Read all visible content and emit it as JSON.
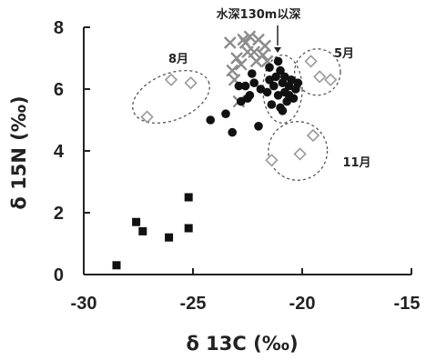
{
  "chart_data": {
    "type": "scatter",
    "title": "",
    "xlabel": "δ 13C (‰)",
    "ylabel": "δ 15N (‰)",
    "xlim": [
      -30,
      -15
    ],
    "ylim": [
      0,
      8
    ],
    "x_ticks": [
      "-30",
      "-25",
      "-20",
      "-15"
    ],
    "y_ticks": [
      "0",
      "2",
      "4",
      "6",
      "8"
    ],
    "grid": false,
    "series": [
      {
        "marker": "square-filled",
        "color": "#111111",
        "points": [
          {
            "x": -28.5,
            "y": 0.3
          },
          {
            "x": -27.6,
            "y": 1.7
          },
          {
            "x": -27.3,
            "y": 1.4
          },
          {
            "x": -26.1,
            "y": 1.2
          },
          {
            "x": -25.2,
            "y": 2.5
          },
          {
            "x": -25.2,
            "y": 1.5
          }
        ]
      },
      {
        "marker": "circle-filled",
        "color": "#111111",
        "points": [
          {
            "x": -24.2,
            "y": 5.0
          },
          {
            "x": -23.5,
            "y": 5.2
          },
          {
            "x": -23.2,
            "y": 4.6
          },
          {
            "x": -22.8,
            "y": 5.6
          },
          {
            "x": -22.5,
            "y": 5.7
          },
          {
            "x": -22.2,
            "y": 6.2
          },
          {
            "x": -22.0,
            "y": 4.8
          },
          {
            "x": -22.9,
            "y": 6.1
          },
          {
            "x": -22.6,
            "y": 6.1
          },
          {
            "x": -22.4,
            "y": 5.8
          },
          {
            "x": -22.3,
            "y": 6.5
          },
          {
            "x": -21.9,
            "y": 6.0
          },
          {
            "x": -21.6,
            "y": 5.9
          },
          {
            "x": -21.5,
            "y": 6.3
          },
          {
            "x": -21.4,
            "y": 5.5
          },
          {
            "x": -21.3,
            "y": 6.1
          },
          {
            "x": -21.2,
            "y": 6.4
          },
          {
            "x": -21.1,
            "y": 5.8
          },
          {
            "x": -21.0,
            "y": 6.6
          },
          {
            "x": -21.0,
            "y": 5.4
          },
          {
            "x": -20.9,
            "y": 6.2
          },
          {
            "x": -20.8,
            "y": 5.9
          },
          {
            "x": -20.8,
            "y": 6.4
          },
          {
            "x": -20.7,
            "y": 5.6
          },
          {
            "x": -20.6,
            "y": 6.1
          },
          {
            "x": -20.6,
            "y": 5.8
          },
          {
            "x": -20.5,
            "y": 6.3
          },
          {
            "x": -20.4,
            "y": 5.7
          },
          {
            "x": -20.3,
            "y": 6.0
          },
          {
            "x": -20.2,
            "y": 6.2
          },
          {
            "x": -21.1,
            "y": 6.9
          },
          {
            "x": -20.9,
            "y": 5.3
          },
          {
            "x": -21.5,
            "y": 6.7
          }
        ]
      },
      {
        "marker": "x-gray",
        "color": "#8c8c8c",
        "points": [
          {
            "x": -23.0,
            "y": 7.0
          },
          {
            "x": -23.2,
            "y": 6.6
          },
          {
            "x": -22.8,
            "y": 6.8
          },
          {
            "x": -22.6,
            "y": 7.5
          },
          {
            "x": -22.4,
            "y": 7.7
          },
          {
            "x": -22.2,
            "y": 7.2
          },
          {
            "x": -22.0,
            "y": 7.6
          },
          {
            "x": -21.8,
            "y": 7.1
          },
          {
            "x": -21.7,
            "y": 7.4
          },
          {
            "x": -22.5,
            "y": 7.2
          },
          {
            "x": -23.3,
            "y": 7.5
          },
          {
            "x": -21.6,
            "y": 6.9
          },
          {
            "x": -22.1,
            "y": 6.9
          },
          {
            "x": -22.9,
            "y": 5.6
          },
          {
            "x": -22.7,
            "y": 7.6
          },
          {
            "x": -23.1,
            "y": 6.3
          }
        ]
      },
      {
        "marker": "diamond-open",
        "color": "#999999",
        "points": [
          {
            "x": -27.1,
            "y": 5.1
          },
          {
            "x": -26.0,
            "y": 6.3
          },
          {
            "x": -25.1,
            "y": 6.2
          },
          {
            "x": -19.6,
            "y": 6.9
          },
          {
            "x": -19.2,
            "y": 6.4
          },
          {
            "x": -18.7,
            "y": 6.3
          },
          {
            "x": -21.4,
            "y": 3.7
          },
          {
            "x": -20.1,
            "y": 3.9
          },
          {
            "x": -19.5,
            "y": 4.5
          }
        ]
      }
    ],
    "annotations": [
      {
        "text": "8月",
        "x": -25.7,
        "y": 7.35
      },
      {
        "text": "5月",
        "x": -18.5,
        "y": 7.1
      },
      {
        "text": "11月",
        "x": -18.5,
        "y": 3.4
      },
      {
        "text": "水深130m以深",
        "x": -22.3,
        "y": 8.4
      }
    ],
    "groups": [
      {
        "label": "8月",
        "cx": -26.0,
        "cy": 5.75,
        "rx": 1.85,
        "ry": 0.75,
        "rotate": -22
      },
      {
        "label": "5月",
        "cx": -19.3,
        "cy": 6.55,
        "rx": 1.05,
        "ry": 0.75,
        "rotate": 0
      },
      {
        "label": "11月",
        "cx": -20.2,
        "cy": 4.0,
        "rx": 1.35,
        "ry": 0.95,
        "rotate": 0
      },
      {
        "label": "水深130m以深",
        "cx": -20.9,
        "cy": 6.0,
        "rx": 0.9,
        "ry": 1.1,
        "rotate": 0
      }
    ]
  }
}
